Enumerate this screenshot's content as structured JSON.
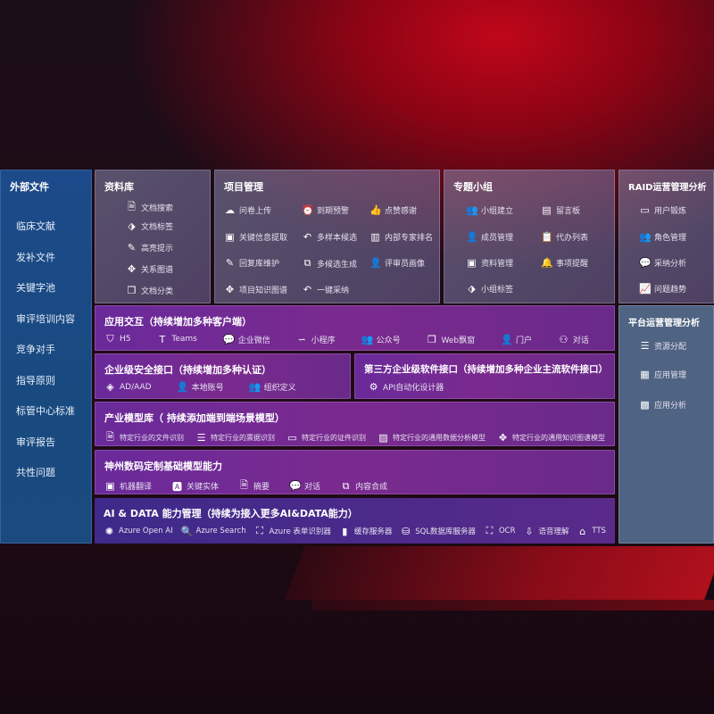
{
  "sidebar": {
    "title": "外部文件",
    "items": [
      "临床文献",
      "发补文件",
      "关键字池",
      "审评培训内容",
      "竞争对手",
      "指导原则",
      "标管中心标准",
      "审评报告",
      "共性问题"
    ]
  },
  "library": {
    "title": "资料库",
    "items": [
      {
        "icon": "doc-search-icon",
        "label": "文档搜索"
      },
      {
        "icon": "tag-icon",
        "label": "文档标签"
      },
      {
        "icon": "pen-icon",
        "label": "高亮提示"
      },
      {
        "icon": "graph-icon",
        "label": "关系图谱"
      },
      {
        "icon": "doc-copy-icon",
        "label": "文档分类"
      }
    ]
  },
  "project": {
    "title": "项目管理",
    "items": [
      {
        "icon": "cloud-upload-icon",
        "label": "问卷上传"
      },
      {
        "icon": "alarm-icon",
        "label": "到期预警"
      },
      {
        "icon": "thumbs-up-icon",
        "label": "点赞感谢"
      },
      {
        "icon": "window-icon",
        "label": "关键信息提取"
      },
      {
        "icon": "reply-icon",
        "label": "多样本候选"
      },
      {
        "icon": "ranking-icon",
        "label": "内部专家排名"
      },
      {
        "icon": "edit-icon",
        "label": "回复库维护"
      },
      {
        "icon": "puzzle-icon",
        "label": "多候选生成"
      },
      {
        "icon": "user-icon",
        "label": "评审员画像"
      },
      {
        "icon": "graph-icon",
        "label": "项目知识图谱"
      },
      {
        "icon": "reply-icon",
        "label": "一键采纳"
      }
    ]
  },
  "group": {
    "title": "专题小组",
    "items": [
      {
        "icon": "users-icon",
        "label": "小组建立"
      },
      {
        "icon": "bbs-icon",
        "label": "留言板"
      },
      {
        "icon": "user-add-icon",
        "label": "成员管理"
      },
      {
        "icon": "clipboard-icon",
        "label": "代办列表"
      },
      {
        "icon": "folder-icon",
        "label": "资料管理"
      },
      {
        "icon": "bell-icon",
        "label": "事项提醒"
      },
      {
        "icon": "tag-icon",
        "label": "小组标签"
      }
    ]
  },
  "raid": {
    "title": "RAID运营管理分析",
    "items": [
      {
        "icon": "id-card-icon",
        "label": "用户锻炼"
      },
      {
        "icon": "users-icon",
        "label": "角色管理"
      },
      {
        "icon": "qa-icon",
        "label": "采纳分析"
      },
      {
        "icon": "trend-icon",
        "label": "问题趋势"
      }
    ]
  },
  "platform": {
    "title": "平台运营管理分析",
    "items": [
      {
        "icon": "list-icon",
        "label": "资源分配"
      },
      {
        "icon": "apps-icon",
        "label": "应用管理"
      },
      {
        "icon": "chart-icon",
        "label": "应用分析"
      }
    ]
  },
  "app": {
    "title": "应用交互（持续增加多种客户端）",
    "items": [
      {
        "icon": "html5-icon",
        "label": "H5"
      },
      {
        "icon": "teams-icon",
        "label": "Teams"
      },
      {
        "icon": "wechat-icon",
        "label": "企业微信"
      },
      {
        "icon": "miniprogram-icon",
        "label": "小程序"
      },
      {
        "icon": "users-icon",
        "label": "公众号"
      },
      {
        "icon": "window-icon",
        "label": "Web飘窗"
      },
      {
        "icon": "portal-icon",
        "label": "门户"
      },
      {
        "icon": "chat-icon",
        "label": "对话"
      }
    ]
  },
  "security": {
    "title": "企业级安全接口（持续增加多种认证）",
    "items": [
      {
        "icon": "ad-icon",
        "label": "AD/AAD"
      },
      {
        "icon": "account-icon",
        "label": "本地账号"
      },
      {
        "icon": "org-icon",
        "label": "组织定义"
      }
    ]
  },
  "thirdparty": {
    "title": "第三方企业级软件接口（持续增加多种企业主流软件接口）",
    "items": [
      {
        "icon": "gear-icon",
        "label": "API自动化设计器"
      }
    ]
  },
  "industry": {
    "title": "产业模型库（ 持续添加端到端场景模型）",
    "items": [
      {
        "icon": "doc-icon",
        "label": "特定行业的文件识别"
      },
      {
        "icon": "receipt-icon",
        "label": "特定行业的票据识别"
      },
      {
        "icon": "id-card-icon",
        "label": "特定行业的证件识别"
      },
      {
        "icon": "image-icon",
        "label": "特定行业的通用数据分析模型"
      },
      {
        "icon": "graph-icon",
        "label": "特定行业的通用知识图谱模型"
      }
    ]
  },
  "base": {
    "title": "神州数码定制基础模型能力",
    "items": [
      {
        "icon": "translate-icon",
        "label": "机器翻译"
      },
      {
        "icon": "entity-icon",
        "label": "关键实体"
      },
      {
        "icon": "doc-icon",
        "label": "摘要"
      },
      {
        "icon": "chat-icon",
        "label": "对话"
      },
      {
        "icon": "puzzle-icon",
        "label": "内容合成"
      }
    ]
  },
  "ai": {
    "title": "AI & DATA 能力管理（持续为接入更多AI&DATA能力）",
    "items": [
      {
        "icon": "openai-icon",
        "label": "Azure Open AI"
      },
      {
        "icon": "search-icon",
        "label": "Azure Search"
      },
      {
        "icon": "form-icon",
        "label": "Azure 表单识别器"
      },
      {
        "icon": "storage-icon",
        "label": "缓存服务器"
      },
      {
        "icon": "sql-icon",
        "label": "SQL数据库服务器"
      },
      {
        "icon": "ocr-icon",
        "label": "OCR"
      },
      {
        "icon": "speech-icon",
        "label": "语音理解"
      },
      {
        "icon": "tts-icon",
        "label": "TTS"
      }
    ]
  }
}
